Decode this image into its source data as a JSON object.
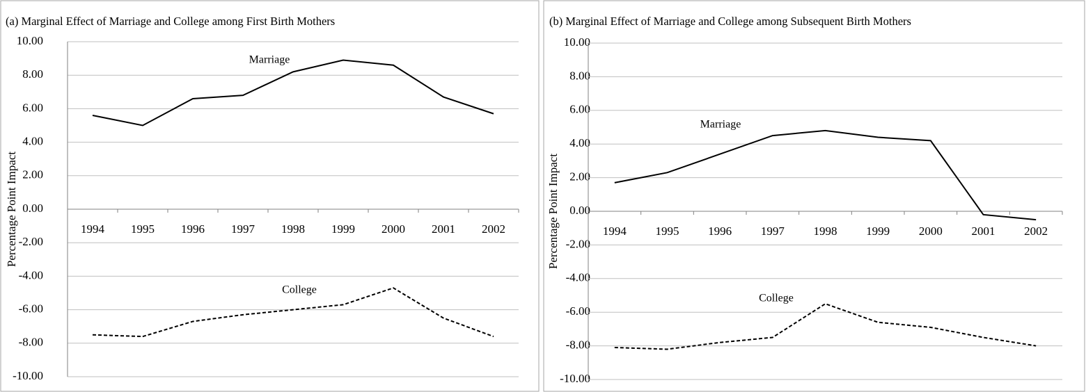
{
  "chart_data": [
    {
      "type": "line",
      "title": "(a) Marginal Effect of Marriage and College among First Birth Mothers",
      "y_label": "Percentage Point Impact",
      "categories": [
        "1994",
        "1995",
        "1996",
        "1997",
        "1998",
        "1999",
        "2000",
        "2001",
        "2002"
      ],
      "series": [
        {
          "name": "Marriage",
          "color": "#000000",
          "linestyle": "solid",
          "values": [
            5.6,
            5.0,
            6.6,
            6.8,
            8.2,
            8.9,
            8.6,
            6.7,
            5.7
          ]
        },
        {
          "name": "College",
          "color": "#000000",
          "linestyle": "dashed",
          "values": [
            -7.5,
            -7.6,
            -6.7,
            -6.3,
            -6.0,
            -5.7,
            -4.7,
            -6.5,
            -7.6
          ]
        }
      ],
      "ylim": [
        -10,
        10
      ],
      "yticks": [
        {
          "value": 10,
          "label": "10.00"
        },
        {
          "value": 8,
          "label": "8.00"
        },
        {
          "value": 6,
          "label": "6.00"
        },
        {
          "value": 4,
          "label": "4.00"
        },
        {
          "value": 2,
          "label": "2.00"
        },
        {
          "value": 0,
          "label": "0.00"
        },
        {
          "value": -2,
          "label": "-2.00"
        },
        {
          "value": -4,
          "label": "-4.00"
        },
        {
          "value": -6,
          "label": "-6.00"
        },
        {
          "value": -8,
          "label": "-8.00"
        },
        {
          "value": -10,
          "label": "-10.00"
        }
      ],
      "grid": true
    },
    {
      "type": "line",
      "title": "(b) Marginal Effect of Marriage and College among Subsequent Birth Mothers",
      "y_label": "Percentage Point Impact",
      "categories": [
        "1994",
        "1995",
        "1996",
        "1997",
        "1998",
        "1999",
        "2000",
        "2001",
        "2002"
      ],
      "series": [
        {
          "name": "Marriage",
          "color": "#000000",
          "linestyle": "solid",
          "values": [
            1.7,
            2.3,
            3.4,
            4.5,
            4.8,
            4.4,
            4.2,
            -0.2,
            -0.5
          ]
        },
        {
          "name": "College",
          "color": "#000000",
          "linestyle": "dashed",
          "values": [
            -8.1,
            -8.2,
            -7.8,
            -7.5,
            -5.5,
            -6.6,
            -6.9,
            -7.5,
            -8.0
          ]
        }
      ],
      "ylim": [
        -10,
        10
      ],
      "yticks": [
        {
          "value": 10,
          "label": "10.00"
        },
        {
          "value": 8,
          "label": "8.00"
        },
        {
          "value": 6,
          "label": "6.00"
        },
        {
          "value": 4,
          "label": "4.00"
        },
        {
          "value": 2,
          "label": "2.00"
        },
        {
          "value": 0,
          "label": "0.00"
        },
        {
          "value": -2,
          "label": "-2.00"
        },
        {
          "value": -4,
          "label": "-4.00"
        },
        {
          "value": -6,
          "label": "-6.00"
        },
        {
          "value": -8,
          "label": "-8.00"
        },
        {
          "value": -10,
          "label": "-10.00"
        }
      ],
      "grid": true
    }
  ]
}
